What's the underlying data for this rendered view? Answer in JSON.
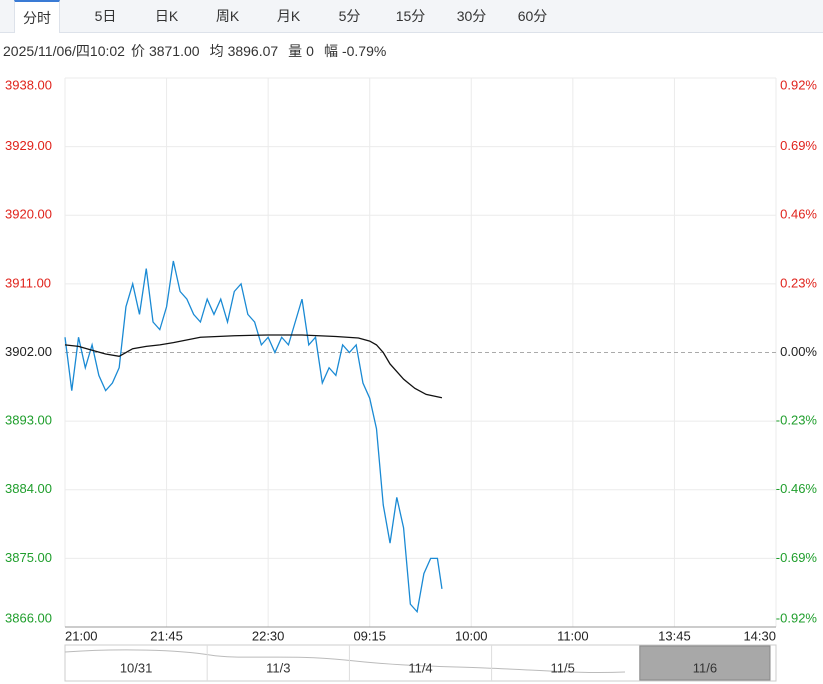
{
  "tabs": {
    "items": [
      "分时",
      "5日",
      "日K",
      "周K",
      "月K",
      "5分",
      "15分",
      "30分",
      "60分"
    ],
    "selected": 0
  },
  "info": {
    "time": "2025/11/06/四10:02",
    "items": [
      {
        "label": "价",
        "value": "3871.00"
      },
      {
        "label": "均",
        "value": "3896.07"
      },
      {
        "label": "量",
        "value": "0"
      },
      {
        "label": "幅",
        "value": "-0.79%"
      }
    ]
  },
  "chart_data": {
    "type": "line",
    "xlim": [
      0,
      315
    ],
    "xticks": [
      {
        "value": 0,
        "label": "21:00"
      },
      {
        "value": 45,
        "label": "21:45"
      },
      {
        "value": 90,
        "label": "22:30"
      },
      {
        "value": 135,
        "label": "09:15"
      },
      {
        "value": 180,
        "label": "10:00"
      },
      {
        "value": 225,
        "label": "11:00"
      },
      {
        "value": 270,
        "label": "13:45"
      },
      {
        "value": 315,
        "label": "14:30"
      }
    ],
    "ylim": [
      3866,
      3938
    ],
    "yticks": [
      {
        "value": 3938,
        "label": "3938.00"
      },
      {
        "value": 3929,
        "label": "3929.00"
      },
      {
        "value": 3920,
        "label": "3920.00"
      },
      {
        "value": 3911,
        "label": "3911.00"
      },
      {
        "value": 3902,
        "label": "3902.00"
      },
      {
        "value": 3893,
        "label": "3893.00"
      },
      {
        "value": 3884,
        "label": "3884.00"
      },
      {
        "value": 3875,
        "label": "3875.00"
      },
      {
        "value": 3866,
        "label": "3866.00"
      }
    ],
    "y2lim": [
      -0.92,
      0.92
    ],
    "y2ticks": [
      {
        "value": 0.92,
        "label": "0.92%"
      },
      {
        "value": 0.69,
        "label": "0.69%"
      },
      {
        "value": 0.46,
        "label": "0.46%"
      },
      {
        "value": 0.23,
        "label": "0.23%"
      },
      {
        "value": 0,
        "label": "0.00%"
      },
      {
        "value": -0.23,
        "label": "-0.23%"
      },
      {
        "value": -0.46,
        "label": "-0.46%"
      },
      {
        "value": -0.69,
        "label": "-0.69%"
      },
      {
        "value": -0.92,
        "label": "-0.92%"
      }
    ],
    "baseline": 3902,
    "grid": true,
    "up_color": "#e0231c",
    "down_color": "#1f9e2c",
    "series": [
      {
        "color": "#1a8ad4",
        "x": [
          0,
          3,
          6,
          9,
          12,
          15,
          18,
          21,
          24,
          27,
          30,
          33,
          36,
          39,
          42,
          45,
          48,
          51,
          54,
          57,
          60,
          63,
          66,
          69,
          72,
          75,
          78,
          81,
          84,
          87,
          90,
          93,
          96,
          99,
          102,
          105,
          108,
          111,
          114,
          117,
          120,
          123,
          126,
          129,
          132,
          135,
          138,
          141,
          144,
          147,
          150,
          153,
          156,
          159,
          162,
          165,
          167
        ],
        "values": [
          3904,
          3897,
          3904,
          3900,
          3903,
          3899,
          3897,
          3898,
          3900,
          3908,
          3911,
          3907,
          3913,
          3906,
          3905,
          3908,
          3914,
          3910,
          3909,
          3907,
          3906,
          3909,
          3907,
          3909,
          3906,
          3910,
          3911,
          3907,
          3906,
          3903,
          3904,
          3902,
          3904,
          3903,
          3906,
          3909,
          3903,
          3904,
          3898,
          3900,
          3899,
          3903,
          3902,
          3903,
          3898,
          3896,
          3892,
          3882,
          3877,
          3883,
          3879,
          3869,
          3868,
          3873,
          3875,
          3875,
          3871
        ]
      },
      {
        "color": "#111111",
        "x": [
          0,
          6,
          12,
          18,
          24,
          30,
          36,
          42,
          48,
          60,
          75,
          90,
          105,
          120,
          130,
          135,
          138,
          141,
          144,
          150,
          155,
          160,
          167
        ],
        "values": [
          3903,
          3902.8,
          3902.3,
          3901.8,
          3901.5,
          3902.5,
          3902.8,
          3903,
          3903.3,
          3904,
          3904.2,
          3904.3,
          3904.3,
          3904.1,
          3903.9,
          3903.5,
          3903,
          3902,
          3900.5,
          3898.5,
          3897.3,
          3896.5,
          3896.07
        ]
      }
    ]
  },
  "navigator": {
    "labels": [
      "10/31",
      "11/3",
      "11/4",
      "11/5",
      "11/6"
    ],
    "selected": 4
  }
}
